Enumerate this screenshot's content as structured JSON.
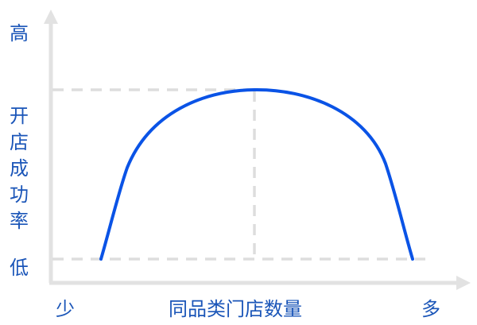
{
  "labels": {
    "y_high": "高",
    "y_low": "低",
    "y_title": "开店成功率",
    "x_few": "少",
    "x_many": "多",
    "x_title": "同品类门店数量"
  },
  "colors": {
    "axis": "#e2e2e2",
    "guide": "#dddddd",
    "curve": "#0a53e6",
    "text": "#1a55b8"
  }
}
